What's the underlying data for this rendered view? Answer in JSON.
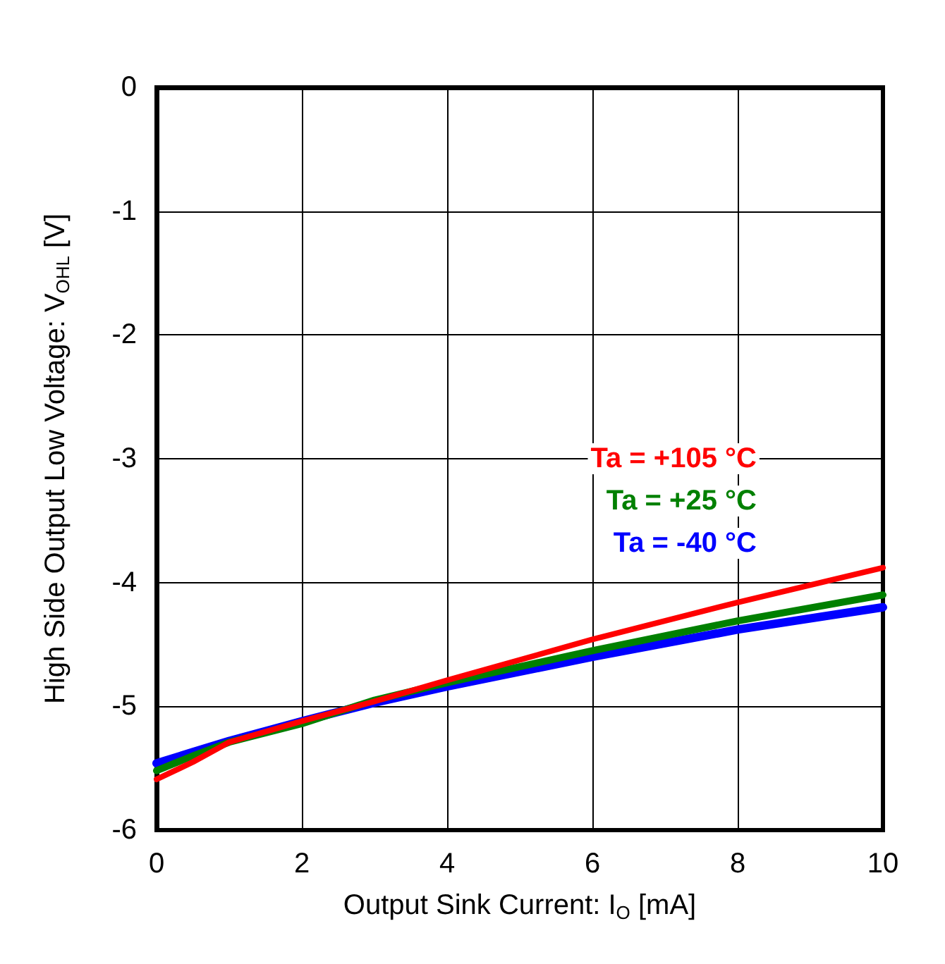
{
  "chart_data": {
    "type": "line",
    "xlabel": "Output Sink Current: I$_{O}$ [mA]",
    "ylabel": "High Side Output Low Voltage: V$_{OHL}$ [V]",
    "x": [
      0,
      0.5,
      1,
      2,
      3,
      4,
      6,
      8,
      10
    ],
    "series": [
      {
        "name": "Ta = +105 °C",
        "color": "#ff0000",
        "values": [
          -5.59,
          -5.45,
          -5.29,
          -5.12,
          -4.96,
          -4.79,
          -4.46,
          -4.16,
          -3.88
        ]
      },
      {
        "name": "Ta = +25 °C",
        "color": "#008000",
        "values": [
          -5.52,
          -5.4,
          -5.29,
          -5.14,
          -4.95,
          -4.81,
          -4.55,
          -4.31,
          -4.1
        ]
      },
      {
        "name": "Ta = -40 °C",
        "color": "#0000ff",
        "values": [
          -5.46,
          -5.37,
          -5.28,
          -5.12,
          -4.97,
          -4.84,
          -4.6,
          -4.38,
          -4.2
        ]
      }
    ],
    "xlim": [
      0,
      10
    ],
    "xticks": [
      0,
      2,
      4,
      6,
      8,
      10
    ],
    "ylim": [
      -6,
      0
    ],
    "yticks": [
      -6,
      -5,
      -4,
      -3,
      -2,
      -1,
      0
    ],
    "grid": true,
    "legend": "right",
    "marker": "none",
    "line_style": "solid"
  }
}
